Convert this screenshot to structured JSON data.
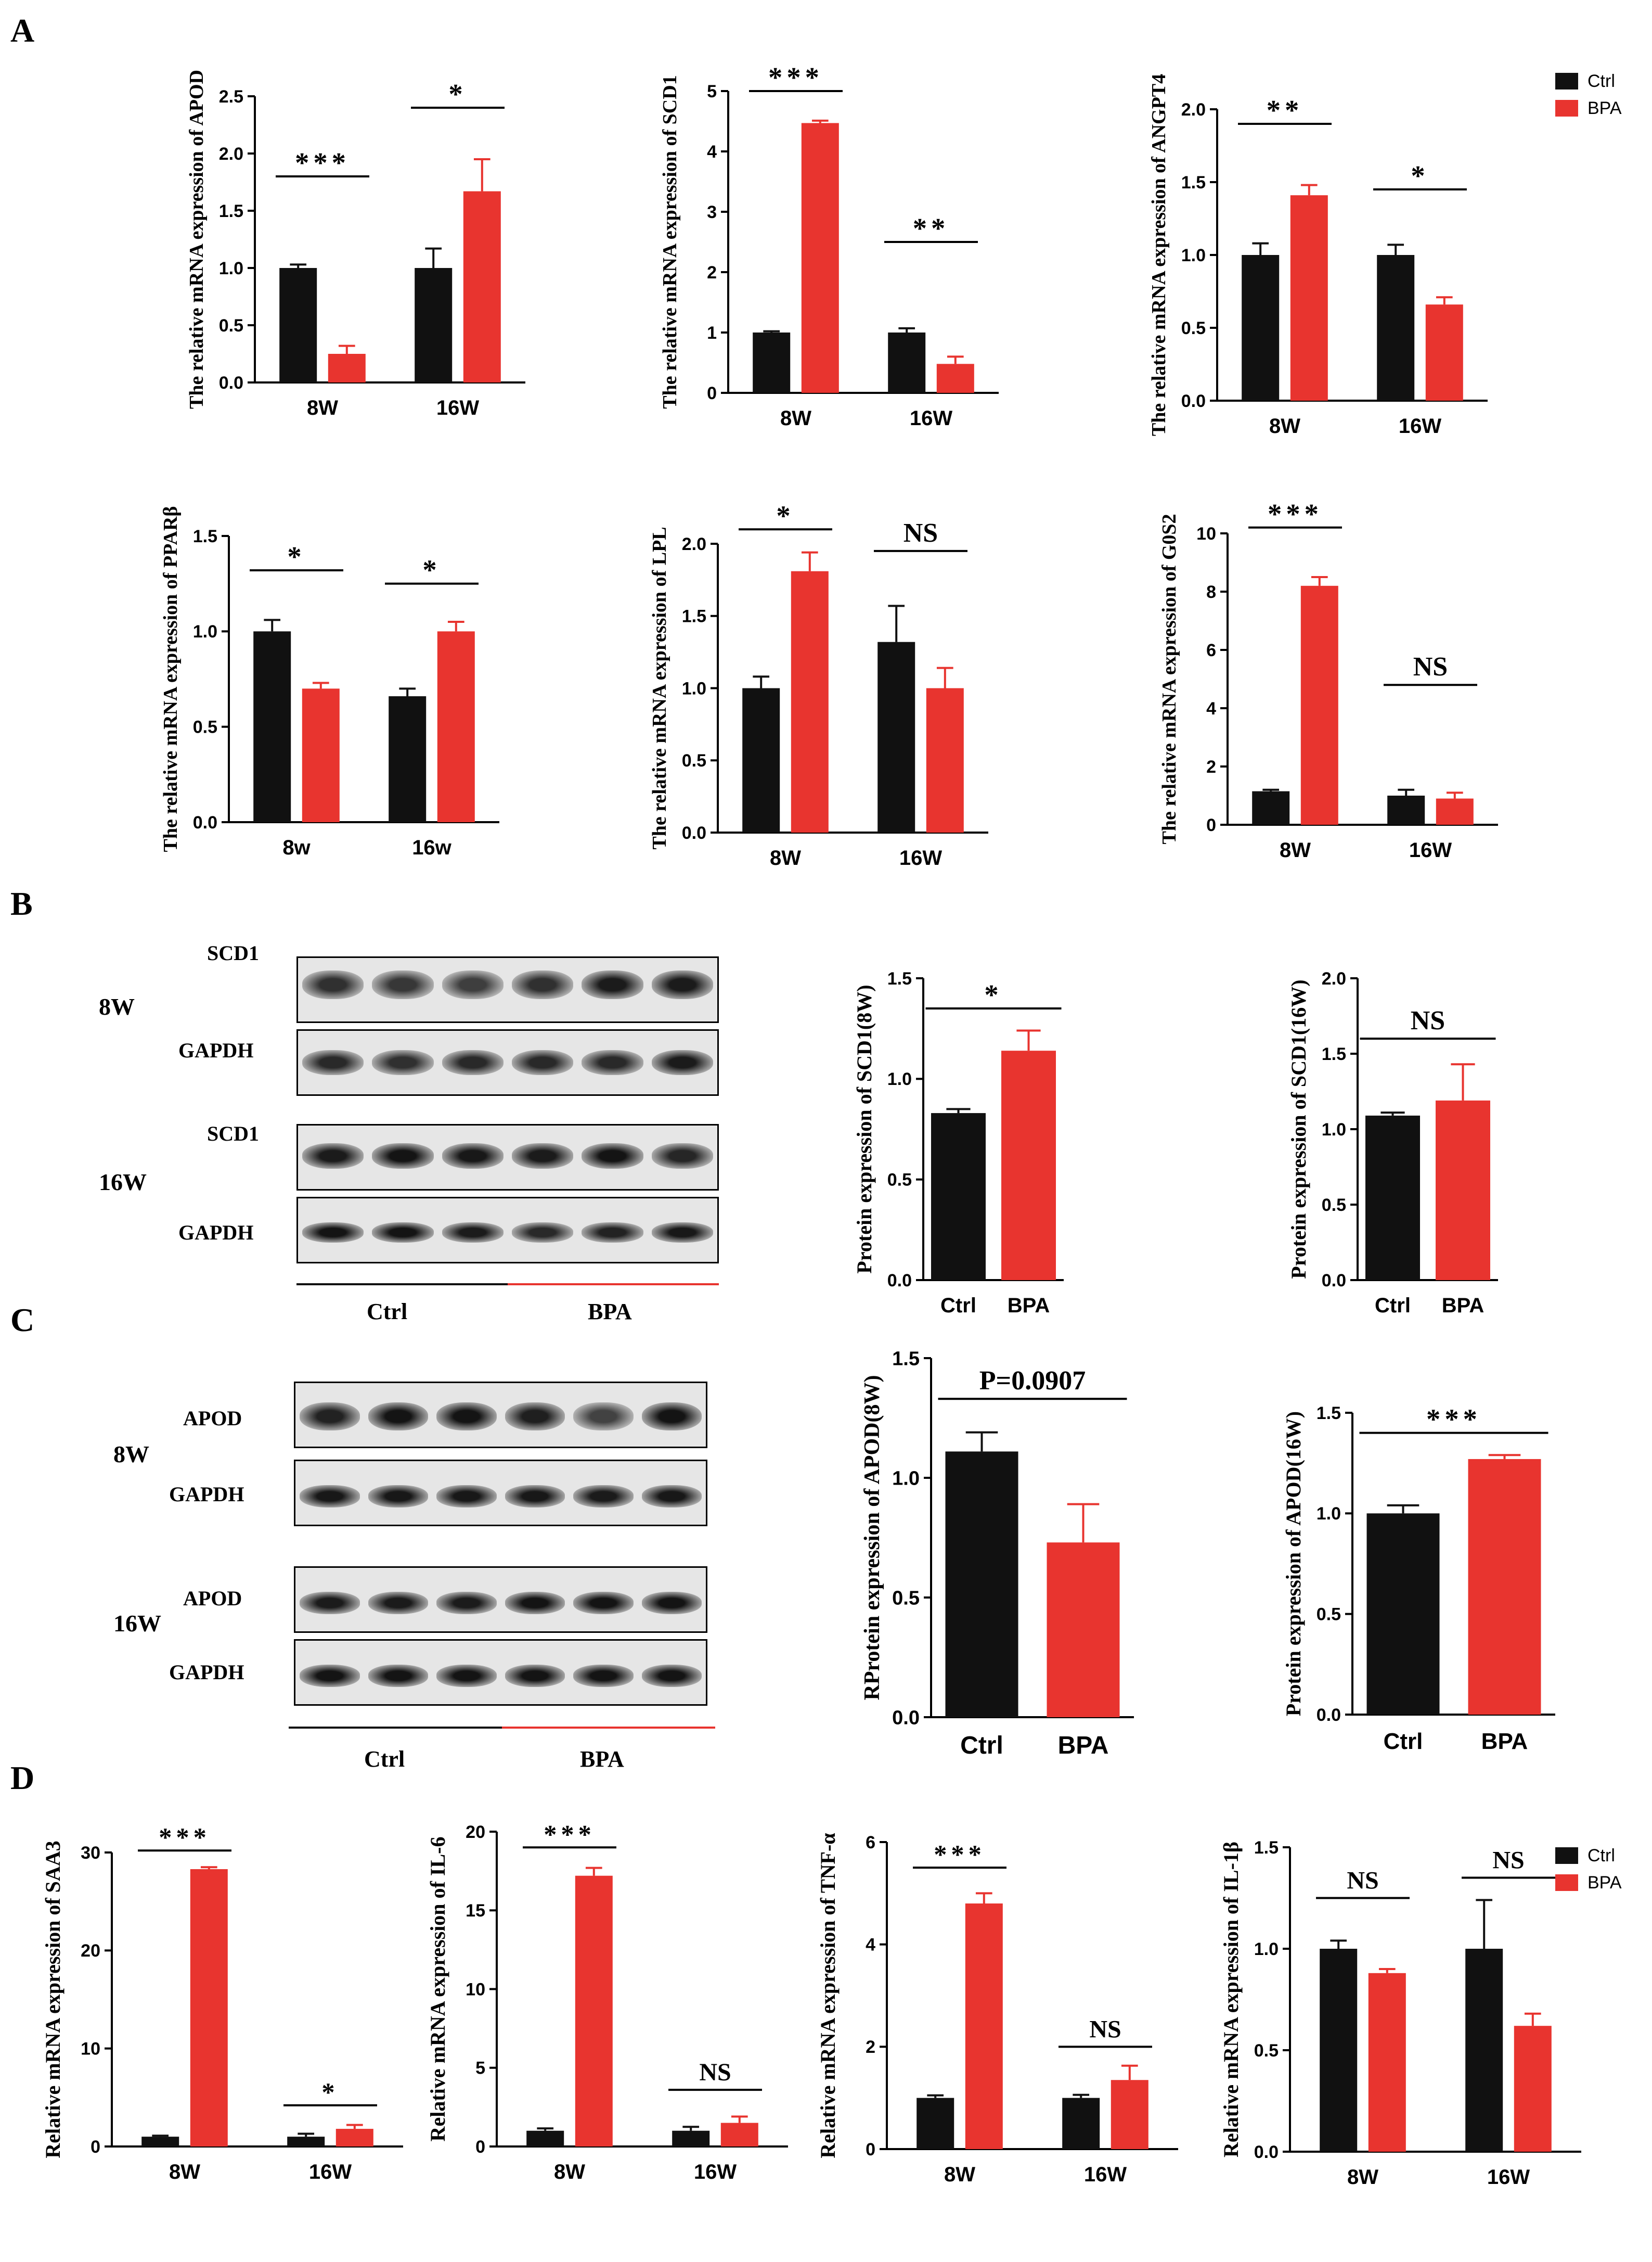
{
  "panels": {
    "A": "A",
    "B": "B",
    "C": "C",
    "D": "D"
  },
  "legend_A": {
    "items": [
      "Ctrl",
      "BPA"
    ]
  },
  "legend_D": {
    "items": [
      "Ctrl",
      "BPA"
    ]
  },
  "colors": {
    "ctrl": "#111111",
    "bpa": "#e8342f"
  },
  "blot_B": {
    "w8": "8W",
    "w16": "16W",
    "label1": "SCD1",
    "label2": "GAPDH",
    "label3": "SCD1",
    "label4": "GAPDH",
    "ctrl": "Ctrl",
    "bpa": "BPA"
  },
  "blot_C": {
    "w8": "8W",
    "w16": "16W",
    "label1": "APOD",
    "label2": "GAPDH",
    "label3": "APOD",
    "label4": "GAPDH",
    "ctrl": "Ctrl",
    "bpa": "BPA"
  },
  "chart_data": [
    {
      "id": "a1",
      "type": "bar",
      "ylabel": "The relative mRNA expression of APOD",
      "categories": [
        "8W",
        "16W"
      ],
      "ylim": [
        0,
        2.5
      ],
      "ticks": [
        "0.0",
        "0.5",
        "1.0",
        "1.5",
        "2.0",
        "2.5"
      ],
      "series": [
        {
          "name": "Ctrl",
          "values": [
            1.0,
            1.0
          ],
          "errors": [
            0.03,
            0.17
          ]
        },
        {
          "name": "BPA",
          "values": [
            0.25,
            1.67
          ],
          "errors": [
            0.07,
            0.28
          ]
        }
      ],
      "annotations": [
        {
          "text": "***",
          "y": 1.8
        },
        {
          "text": "*",
          "y": 2.4
        }
      ]
    },
    {
      "id": "a2",
      "type": "bar",
      "ylabel": "The relative mRNA expression of SCD1",
      "categories": [
        "8W",
        "16W"
      ],
      "ylim": [
        0,
        5
      ],
      "ticks": [
        "0",
        "1",
        "2",
        "3",
        "4",
        "5"
      ],
      "series": [
        {
          "name": "Ctrl",
          "values": [
            1.0,
            1.0
          ],
          "errors": [
            0.02,
            0.07
          ]
        },
        {
          "name": "BPA",
          "values": [
            4.47,
            0.48
          ],
          "errors": [
            0.04,
            0.12
          ]
        }
      ],
      "annotations": [
        {
          "text": "***",
          "y": 5.0
        },
        {
          "text": "**",
          "y": 2.5
        }
      ]
    },
    {
      "id": "a3",
      "type": "bar",
      "ylabel": "The relative mRNA expression of ANGPT4",
      "categories": [
        "8W",
        "16W"
      ],
      "ylim": [
        0,
        2.0
      ],
      "ticks": [
        "0.0",
        "0.5",
        "1.0",
        "1.5",
        "2.0"
      ],
      "series": [
        {
          "name": "Ctrl",
          "values": [
            1.0,
            1.0
          ],
          "errors": [
            0.08,
            0.07
          ]
        },
        {
          "name": "BPA",
          "values": [
            1.41,
            0.66
          ],
          "errors": [
            0.07,
            0.05
          ]
        }
      ],
      "annotations": [
        {
          "text": "**",
          "y": 1.9
        },
        {
          "text": "*",
          "y": 1.45
        }
      ]
    },
    {
      "id": "a4",
      "type": "bar",
      "ylabel": "The relative mRNA expression of PPARβ",
      "categories": [
        "8w",
        "16w"
      ],
      "ylim": [
        0,
        1.5
      ],
      "ticks": [
        "0.0",
        "0.5",
        "1.0",
        "1.5"
      ],
      "series": [
        {
          "name": "Ctrl",
          "values": [
            1.0,
            0.66
          ],
          "errors": [
            0.06,
            0.04
          ]
        },
        {
          "name": "BPA",
          "values": [
            0.7,
            1.0
          ],
          "errors": [
            0.03,
            0.05
          ]
        }
      ],
      "annotations": [
        {
          "text": "*",
          "y": 1.32
        },
        {
          "text": "*",
          "y": 1.25
        }
      ]
    },
    {
      "id": "a5",
      "type": "bar",
      "ylabel": "The relative mRNA expression of LPL",
      "categories": [
        "8W",
        "16W"
      ],
      "ylim": [
        0,
        2.0
      ],
      "ticks": [
        "0.0",
        "0.5",
        "1.0",
        "1.5",
        "2.0"
      ],
      "series": [
        {
          "name": "Ctrl",
          "values": [
            1.0,
            1.32
          ],
          "errors": [
            0.08,
            0.25
          ]
        },
        {
          "name": "BPA",
          "values": [
            1.81,
            1.0
          ],
          "errors": [
            0.13,
            0.14
          ]
        }
      ],
      "annotations": [
        {
          "text": "*",
          "y": 2.1
        },
        {
          "text": "NS",
          "y": 1.95
        }
      ]
    },
    {
      "id": "a6",
      "type": "bar",
      "ylabel": "The relative mRNA expression of G0S2",
      "categories": [
        "8W",
        "16W"
      ],
      "ylim": [
        0,
        10
      ],
      "ticks": [
        "0",
        "2",
        "4",
        "6",
        "8",
        "10"
      ],
      "series": [
        {
          "name": "Ctrl",
          "values": [
            1.15,
            1.0
          ],
          "errors": [
            0.05,
            0.2
          ]
        },
        {
          "name": "BPA",
          "values": [
            8.2,
            0.9
          ],
          "errors": [
            0.3,
            0.2
          ]
        }
      ],
      "annotations": [
        {
          "text": "***",
          "y": 10.2
        },
        {
          "text": "NS",
          "y": 4.8
        }
      ]
    },
    {
      "id": "b1",
      "type": "bar",
      "ylabel": "Protein expression of SCD1(8W)",
      "categories": [
        "Ctrl",
        "BPA"
      ],
      "ylim": [
        0,
        1.5
      ],
      "ticks": [
        "0.0",
        "0.5",
        "1.0",
        "1.5"
      ],
      "series": [
        {
          "name": "value",
          "values": [
            0.83,
            1.14
          ],
          "errors": [
            0.02,
            0.1
          ]
        }
      ],
      "annotations": [
        {
          "text": "*",
          "y": 1.35
        }
      ]
    },
    {
      "id": "b2",
      "type": "bar",
      "ylabel": "Protein expression of SCD1(16W)",
      "categories": [
        "Ctrl",
        "BPA"
      ],
      "ylim": [
        0,
        2.0
      ],
      "ticks": [
        "0.0",
        "0.5",
        "1.0",
        "1.5",
        "2.0"
      ],
      "series": [
        {
          "name": "value",
          "values": [
            1.09,
            1.19
          ],
          "errors": [
            0.02,
            0.24
          ]
        }
      ],
      "annotations": [
        {
          "text": "NS",
          "y": 1.6
        }
      ]
    },
    {
      "id": "c1",
      "type": "bar",
      "ylabel": "RProtein expression of APOD(8W)",
      "categories": [
        "Ctrl",
        "BPA"
      ],
      "ylim": [
        0,
        1.5
      ],
      "ticks": [
        "0.0",
        "0.5",
        "1.0",
        "1.5"
      ],
      "series": [
        {
          "name": "value",
          "values": [
            1.11,
            0.73
          ],
          "errors": [
            0.08,
            0.16
          ]
        }
      ],
      "annotations": [
        {
          "text": "P=0.0907",
          "y": 1.33
        }
      ]
    },
    {
      "id": "c2",
      "type": "bar",
      "ylabel": "Protein expression of APOD(16W)",
      "categories": [
        "Ctrl",
        "BPA"
      ],
      "ylim": [
        0,
        1.5
      ],
      "ticks": [
        "0.0",
        "0.5",
        "1.0",
        "1.5"
      ],
      "series": [
        {
          "name": "value",
          "values": [
            1.0,
            1.27
          ],
          "errors": [
            0.04,
            0.02
          ]
        }
      ],
      "annotations": [
        {
          "text": "***",
          "y": 1.4
        }
      ]
    },
    {
      "id": "d1",
      "type": "bar",
      "ylabel": "Relative mRNA expression of SAA3",
      "categories": [
        "8W",
        "16W"
      ],
      "ylim": [
        0,
        30
      ],
      "ticks": [
        "0",
        "10",
        "20",
        "30"
      ],
      "series": [
        {
          "name": "Ctrl",
          "values": [
            1.0,
            1.0
          ],
          "errors": [
            0.1,
            0.3
          ]
        },
        {
          "name": "BPA",
          "values": [
            28.3,
            1.8
          ],
          "errors": [
            0.2,
            0.4
          ]
        }
      ],
      "annotations": [
        {
          "text": "***",
          "y": 30.2
        },
        {
          "text": "*",
          "y": 4.2
        }
      ]
    },
    {
      "id": "d2",
      "type": "bar",
      "ylabel": "Relative mRNA expression of IL-6",
      "categories": [
        "8W",
        "16W"
      ],
      "ylim": [
        0,
        20
      ],
      "ticks": [
        "0",
        "5",
        "10",
        "15",
        "20"
      ],
      "series": [
        {
          "name": "Ctrl",
          "values": [
            1.0,
            1.0
          ],
          "errors": [
            0.15,
            0.25
          ]
        },
        {
          "name": "BPA",
          "values": [
            17.2,
            1.5
          ],
          "errors": [
            0.5,
            0.4
          ]
        }
      ],
      "annotations": [
        {
          "text": "***",
          "y": 19.0
        },
        {
          "text": "NS",
          "y": 3.6
        }
      ]
    },
    {
      "id": "d3",
      "type": "bar",
      "ylabel": "Relative mRNA expression of TNF-α",
      "categories": [
        "8W",
        "16W"
      ],
      "ylim": [
        0,
        6
      ],
      "ticks": [
        "0",
        "2",
        "4",
        "6"
      ],
      "series": [
        {
          "name": "Ctrl",
          "values": [
            1.0,
            1.0
          ],
          "errors": [
            0.05,
            0.06
          ]
        },
        {
          "name": "BPA",
          "values": [
            4.8,
            1.35
          ],
          "errors": [
            0.2,
            0.28
          ]
        }
      ],
      "annotations": [
        {
          "text": "***",
          "y": 5.5
        },
        {
          "text": "NS",
          "y": 2.0
        }
      ]
    },
    {
      "id": "d4",
      "type": "bar",
      "ylabel": "Relative mRNA expression of IL-1β",
      "categories": [
        "8W",
        "16W"
      ],
      "ylim": [
        0,
        1.5
      ],
      "ticks": [
        "0.0",
        "0.5",
        "1.0",
        "1.5"
      ],
      "series": [
        {
          "name": "Ctrl",
          "values": [
            1.0,
            1.0
          ],
          "errors": [
            0.04,
            0.24
          ]
        },
        {
          "name": "BPA",
          "values": [
            0.88,
            0.62
          ],
          "errors": [
            0.02,
            0.06
          ]
        }
      ],
      "annotations": [
        {
          "text": "NS",
          "y": 1.25
        },
        {
          "text": "NS",
          "y": 1.35
        }
      ]
    }
  ]
}
